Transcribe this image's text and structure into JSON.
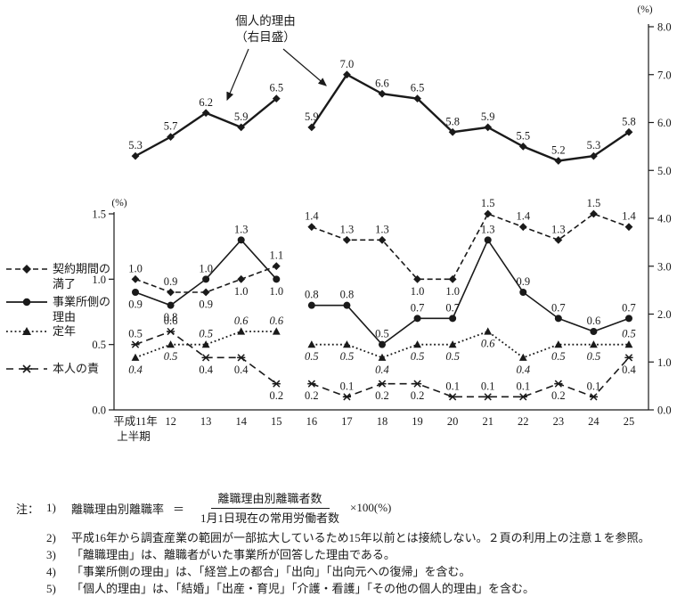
{
  "annotation": {
    "line1": "個人的理由",
    "line2": "（右目盛）"
  },
  "axes": {
    "left_unit": "(%)",
    "right_unit": "(%)",
    "left_ticks": [
      1.5,
      1.0,
      0.5,
      0.0
    ],
    "right_ticks": [
      8.0,
      7.0,
      6.0,
      5.0,
      4.0,
      3.0,
      2.0,
      1.0,
      0.0
    ],
    "x_labels": [
      "平成11年",
      "12",
      "13",
      "14",
      "15",
      "16",
      "17",
      "18",
      "19",
      "20",
      "21",
      "22",
      "23",
      "24",
      "25"
    ],
    "x_sub_label": "上半期"
  },
  "legend": {
    "items": [
      {
        "lines": [
          "契約期間の",
          "満了"
        ],
        "marker": "diamond",
        "line": "dashed"
      },
      {
        "lines": [
          "事業所側の",
          "理由"
        ],
        "marker": "circle",
        "line": "solid"
      },
      {
        "lines": [
          "定年",
          ""
        ],
        "marker": "triangle",
        "line": "dotted"
      },
      {
        "lines": [
          "本人の責",
          ""
        ],
        "marker": "star",
        "line": "longdash"
      }
    ]
  },
  "chart_data": {
    "type": "line",
    "title": "",
    "x": [
      11,
      12,
      13,
      14,
      15,
      16,
      17,
      18,
      19,
      20,
      21,
      22,
      23,
      24,
      25
    ],
    "x_labels": [
      "平成11年",
      "12",
      "13",
      "14",
      "15",
      "16",
      "17",
      "18",
      "19",
      "20",
      "21",
      "22",
      "23",
      "24",
      "25"
    ],
    "x_sub_label": "上半期",
    "segments": [
      [
        0,
        4
      ],
      [
        5,
        14
      ]
    ],
    "left_axis": {
      "unit": "(%)",
      "min": 0.0,
      "max": 1.5,
      "ticks": [
        1.5,
        1.0,
        0.5,
        0.0
      ]
    },
    "right_axis": {
      "unit": "(%)",
      "min": 0.0,
      "max": 8.0,
      "ticks": [
        8.0,
        7.0,
        6.0,
        5.0,
        4.0,
        3.0,
        2.0,
        1.0,
        0.0
      ]
    },
    "series": [
      {
        "name": "個人的理由",
        "axis": "right",
        "line": "solid-thick",
        "marker": "diamond",
        "italic_labels": false,
        "values": [
          5.3,
          5.7,
          6.2,
          5.9,
          6.5,
          5.9,
          7.0,
          6.6,
          6.5,
          5.8,
          5.9,
          5.5,
          5.2,
          5.3,
          5.8
        ],
        "label_pos": [
          "a",
          "a",
          "a",
          "a",
          "a",
          "a",
          "a",
          "a",
          "a",
          "a",
          "a",
          "a",
          "a",
          "a",
          "a"
        ]
      },
      {
        "name": "契約期間の満了",
        "axis": "left",
        "line": "dashed",
        "marker": "diamond",
        "italic_labels": false,
        "values": [
          1.0,
          0.9,
          0.9,
          1.0,
          1.1,
          1.4,
          1.3,
          1.3,
          1.0,
          1.0,
          1.5,
          1.4,
          1.3,
          1.5,
          1.4
        ],
        "label_pos": [
          "a",
          "a",
          "b",
          "b",
          "a",
          "a",
          "a",
          "a",
          "b",
          "b",
          "a",
          "a",
          "a",
          "a",
          "a"
        ]
      },
      {
        "name": "事業所側の理由",
        "axis": "left",
        "line": "solid",
        "marker": "circle",
        "italic_labels": false,
        "values": [
          0.9,
          0.8,
          1.0,
          1.3,
          1.0,
          0.8,
          0.8,
          0.5,
          0.7,
          0.7,
          1.3,
          0.9,
          0.7,
          0.6,
          0.7
        ],
        "label_pos": [
          "b",
          "b",
          "a",
          "a",
          "b",
          "a",
          "a",
          "a",
          "a",
          "a",
          "a",
          "a",
          "a",
          "a",
          "a"
        ]
      },
      {
        "name": "定年",
        "axis": "left",
        "line": "dotted",
        "marker": "triangle",
        "italic_labels": true,
        "values": [
          0.4,
          0.5,
          0.5,
          0.6,
          0.6,
          0.5,
          0.5,
          0.4,
          0.5,
          0.5,
          0.6,
          0.4,
          0.5,
          0.5,
          0.5
        ],
        "label_pos": [
          "b",
          "b",
          "a",
          "a",
          "a",
          "b",
          "b",
          "b",
          "b",
          "b",
          "b",
          "b",
          "b",
          "b",
          "a"
        ]
      },
      {
        "name": "本人の責",
        "axis": "left",
        "line": "longdash",
        "marker": "star",
        "italic_labels": false,
        "values": [
          0.5,
          0.6,
          0.4,
          0.4,
          0.2,
          0.2,
          0.1,
          0.2,
          0.2,
          0.1,
          0.1,
          0.1,
          0.2,
          0.1,
          0.4
        ],
        "label_pos": [
          "a",
          "a",
          "b",
          "b",
          "b",
          "b",
          "a",
          "b",
          "b",
          "a",
          "a",
          "a",
          "b",
          "a",
          "b"
        ]
      }
    ],
    "annotation": {
      "line1": "個人的理由",
      "line2": "（右目盛）"
    }
  },
  "notes": {
    "prefix": "注：",
    "note1": {
      "no": "1)",
      "lhs": "離職理由別離職率",
      "eq": "＝",
      "numerator": "離職理由別離職者数",
      "denominator": "1月1日現在の常用労働者数",
      "suffix": "×100(%)"
    },
    "items": [
      {
        "no": "2)",
        "text": "平成16年から調査産業の範囲が一部拡大しているため15年以前とは接続しない。２頁の利用上の注意１を参照。"
      },
      {
        "no": "3)",
        "text": "「離職理由」は、離職者がいた事業所が回答した理由である。"
      },
      {
        "no": "4)",
        "text": "「事業所側の理由」は、「経営上の都合」「出向」「出向元への復帰」を含む。"
      },
      {
        "no": "5)",
        "text": "「個人的理由」は、「結婚」「出産・育児」「介護・看護」「その他の個人的理由」を含む。"
      }
    ]
  },
  "colors": {
    "ink": "#1a1a1a",
    "background": "#ffffff"
  }
}
